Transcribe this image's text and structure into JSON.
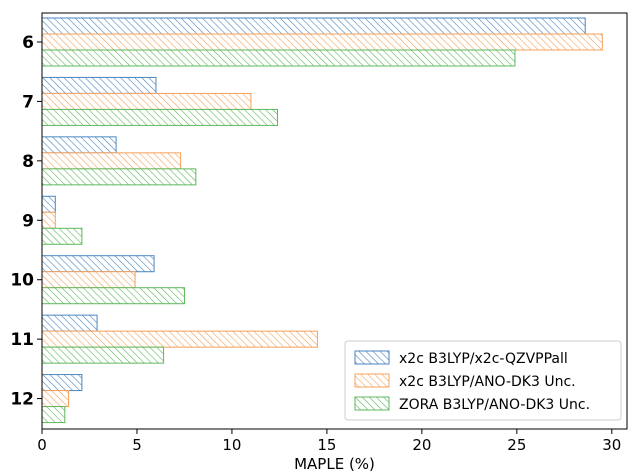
{
  "chart_data": {
    "type": "bar",
    "orientation": "horizontal",
    "categories": [
      "6",
      "7",
      "8",
      "9",
      "10",
      "11",
      "12"
    ],
    "series": [
      {
        "name": "x2c B3LYP/x2c-QZVPPall",
        "color": "#4a86c0",
        "values": [
          28.6,
          6.0,
          3.9,
          0.7,
          5.9,
          2.9,
          2.1
        ]
      },
      {
        "name": "x2c B3LYP/ANO-DK3 Unc.",
        "color": "#f5a05a",
        "values": [
          29.5,
          11.0,
          7.3,
          0.7,
          4.9,
          14.5,
          1.4
        ]
      },
      {
        "name": "ZORA B3LYP/ANO-DK3 Unc.",
        "color": "#5cb85c",
        "values": [
          24.9,
          12.4,
          8.1,
          2.1,
          7.5,
          6.4,
          1.2
        ]
      }
    ],
    "xlabel": "MAPLE (%)",
    "ylabel": "",
    "xlim": [
      0,
      30.8
    ],
    "xticks": [
      0,
      5,
      10,
      15,
      20,
      25,
      30
    ],
    "xtick_labels": [
      "0",
      "5",
      "10",
      "15",
      "20",
      "25",
      "30"
    ],
    "grid": false,
    "legend_position": "lower-right",
    "fill_pattern": "diagonal hatch"
  }
}
